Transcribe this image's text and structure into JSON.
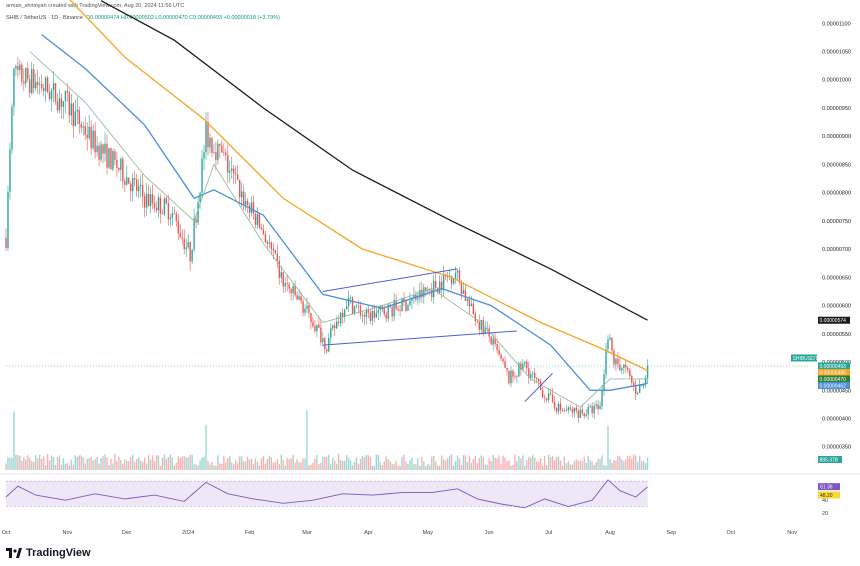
{
  "header": {
    "creator_line": "arman_shirinyan created with TradingView.com, Aug 20, 2024 11:56 UTC",
    "symbol_line": "SHIB / TetherUS · 1D · Binance",
    "ohlc_line": "O0.00000474 H0.00000502 L0.00000470 C0.00000493 +0.00000018 (+3.79%)"
  },
  "branding": {
    "logo_text": "TradingView",
    "logo_icon": "tradingview-logo-icon"
  },
  "colors": {
    "up": "#26a69a",
    "down": "#ef5350",
    "ma_black": "#1a1a1a",
    "ma_orange": "#f5a623",
    "ma_blue": "#4a90d9",
    "ma_green": "#8bb88f",
    "channel": "#4a5fd9",
    "rsi": "#7e57c2",
    "price_tag": "#26a69a"
  },
  "chart_data": [
    {
      "type": "candlestick",
      "title": "SHIB / TetherUS · 1D · Binance",
      "y_axis_ticks": [
        "0.00001100",
        "0.00001050",
        "0.00001000",
        "0.00000950",
        "0.00000900",
        "0.00000850",
        "0.00000800",
        "0.00000750",
        "0.00000700",
        "0.00000650",
        "0.00000600",
        "0.00000550",
        "0.00000500",
        "0.00000450",
        "0.00000400",
        "0.00000350"
      ],
      "ylim": [
        3.3e-06,
        1.12e-05
      ],
      "x_axis_labels": [
        "Oct",
        "Nov",
        "Dec",
        "2024",
        "Feb",
        "Mar",
        "Apr",
        "May",
        "Jun",
        "Jul",
        "Aug",
        "Sep",
        "Oct",
        "Nov"
      ],
      "x_label_days": [
        0,
        31,
        61,
        92,
        123,
        152,
        183,
        213,
        244,
        274,
        305,
        336,
        366,
        397
      ],
      "last_day": 324,
      "price_path": [
        {
          "day": 0,
          "price": 7.2e-06
        },
        {
          "day": 4,
          "price": 1.01e-05
        },
        {
          "day": 8,
          "price": 1.005e-05
        },
        {
          "day": 18,
          "price": 9.9e-06
        },
        {
          "day": 30,
          "price": 9.6e-06
        },
        {
          "day": 44,
          "price": 8.9e-06
        },
        {
          "day": 58,
          "price": 8.4e-06
        },
        {
          "day": 70,
          "price": 7.9e-06
        },
        {
          "day": 83,
          "price": 7.7e-06
        },
        {
          "day": 93,
          "price": 6.9e-06
        },
        {
          "day": 97,
          "price": 7.9e-06
        },
        {
          "day": 101,
          "price": 9.05e-06
        },
        {
          "day": 110,
          "price": 8.6e-06
        },
        {
          "day": 120,
          "price": 7.9e-06
        },
        {
          "day": 130,
          "price": 7.3e-06
        },
        {
          "day": 140,
          "price": 6.4e-06
        },
        {
          "day": 150,
          "price": 6e-06
        },
        {
          "day": 162,
          "price": 5.3e-06
        },
        {
          "day": 172,
          "price": 6.1e-06
        },
        {
          "day": 182,
          "price": 5.8e-06
        },
        {
          "day": 200,
          "price": 6e-06
        },
        {
          "day": 215,
          "price": 6.3e-06
        },
        {
          "day": 227,
          "price": 6.6e-06
        },
        {
          "day": 235,
          "price": 5.9e-06
        },
        {
          "day": 244,
          "price": 5.45e-06
        },
        {
          "day": 254,
          "price": 4.7e-06
        },
        {
          "day": 262,
          "price": 4.95e-06
        },
        {
          "day": 270,
          "price": 4.5e-06
        },
        {
          "day": 280,
          "price": 4.15e-06
        },
        {
          "day": 292,
          "price": 4.1e-06
        },
        {
          "day": 300,
          "price": 4.2e-06
        },
        {
          "day": 304,
          "price": 5.5e-06
        },
        {
          "day": 307,
          "price": 5e-06
        },
        {
          "day": 312,
          "price": 4.9e-06
        },
        {
          "day": 318,
          "price": 4.5e-06
        },
        {
          "day": 322,
          "price": 4.6e-06
        },
        {
          "day": 324,
          "price": 4.93e-06
        }
      ],
      "moving_averages": [
        {
          "name": "MA 200",
          "color_key": "ma_black",
          "points": [
            {
              "day": 48,
              "price": 1.14e-05
            },
            {
              "day": 85,
              "price": 1.07e-05
            },
            {
              "day": 130,
              "price": 9.5e-06
            },
            {
              "day": 175,
              "price": 8.4e-06
            },
            {
              "day": 225,
              "price": 7.5e-06
            },
            {
              "day": 275,
              "price": 6.65e-06
            },
            {
              "day": 324,
              "price": 5.74e-06
            }
          ]
        },
        {
          "name": "MA 100",
          "color_key": "ma_orange",
          "points": [
            {
              "day": 30,
              "price": 1.15e-05
            },
            {
              "day": 60,
              "price": 1.04e-05
            },
            {
              "day": 100,
              "price": 9.3e-06
            },
            {
              "day": 140,
              "price": 7.9e-06
            },
            {
              "day": 180,
              "price": 7e-06
            },
            {
              "day": 225,
              "price": 6.5e-06
            },
            {
              "day": 270,
              "price": 5.7e-06
            },
            {
              "day": 300,
              "price": 5.25e-06
            },
            {
              "day": 324,
              "price": 4.85e-06
            }
          ]
        },
        {
          "name": "MA 50",
          "color_key": "ma_blue",
          "points": [
            {
              "day": 18,
              "price": 1.08e-05
            },
            {
              "day": 40,
              "price": 1.02e-05
            },
            {
              "day": 70,
              "price": 9.2e-06
            },
            {
              "day": 95,
              "price": 7.9e-06
            },
            {
              "day": 105,
              "price": 8.05e-06
            },
            {
              "day": 130,
              "price": 7.6e-06
            },
            {
              "day": 160,
              "price": 6.2e-06
            },
            {
              "day": 190,
              "price": 5.95e-06
            },
            {
              "day": 220,
              "price": 6.3e-06
            },
            {
              "day": 245,
              "price": 6e-06
            },
            {
              "day": 275,
              "price": 5.3e-06
            },
            {
              "day": 295,
              "price": 4.5e-06
            },
            {
              "day": 305,
              "price": 4.5e-06
            },
            {
              "day": 324,
              "price": 4.62e-06
            }
          ]
        },
        {
          "name": "MA 20",
          "color_key": "ma_green",
          "points": [
            {
              "day": 12,
              "price": 1.05e-05
            },
            {
              "day": 40,
              "price": 9.6e-06
            },
            {
              "day": 70,
              "price": 8.3e-06
            },
            {
              "day": 95,
              "price": 7.5e-06
            },
            {
              "day": 105,
              "price": 8.5e-06
            },
            {
              "day": 130,
              "price": 7.1e-06
            },
            {
              "day": 160,
              "price": 5.7e-06
            },
            {
              "day": 190,
              "price": 6e-06
            },
            {
              "day": 215,
              "price": 6.3e-06
            },
            {
              "day": 240,
              "price": 5.7e-06
            },
            {
              "day": 265,
              "price": 4.7e-06
            },
            {
              "day": 290,
              "price": 4.2e-06
            },
            {
              "day": 305,
              "price": 4.7e-06
            },
            {
              "day": 324,
              "price": 4.7e-06
            }
          ]
        }
      ],
      "trend_lines": [
        {
          "from": {
            "day": 160,
            "price": 6.25e-06
          },
          "to": {
            "day": 228,
            "price": 6.65e-06
          }
        },
        {
          "from": {
            "day": 160,
            "price": 5.3e-06
          },
          "to": {
            "day": 258,
            "price": 5.55e-06
          }
        },
        {
          "from": {
            "day": 262,
            "price": 4.3e-06
          },
          "to": {
            "day": 276,
            "price": 4.8e-06
          }
        }
      ],
      "price_tags": [
        {
          "label": "0.00000574",
          "color": "#1a1a1a",
          "price": 5.74e-06
        },
        {
          "label": "SHIBUSDT",
          "color": "#26a69a",
          "price": 4.93e-06
        },
        {
          "label": "0.00000493",
          "color": "#26a69a",
          "price": 4.93e-06
        },
        {
          "label": "0.00000485",
          "color": "#f5a623",
          "price": 4.85e-06
        },
        {
          "label": "0.00000470",
          "color": "#2e7d32",
          "price": 4.7e-06
        },
        {
          "label": "0.00000462",
          "color": "#4a90d9",
          "price": 4.62e-06
        }
      ],
      "volume": {
        "label": "885.37B",
        "spikes_days": [
          4,
          101,
          152,
          304
        ]
      }
    },
    {
      "type": "line",
      "title": "RSI",
      "y_ticks": [
        60,
        40,
        20
      ],
      "ylim": [
        15,
        75
      ],
      "band": [
        30,
        70
      ],
      "current_label": "61.36",
      "secondary_label": "48.20",
      "points": [
        {
          "day": 0,
          "value": 45
        },
        {
          "day": 6,
          "value": 62
        },
        {
          "day": 15,
          "value": 48
        },
        {
          "day": 30,
          "value": 40
        },
        {
          "day": 45,
          "value": 50
        },
        {
          "day": 60,
          "value": 42
        },
        {
          "day": 75,
          "value": 48
        },
        {
          "day": 90,
          "value": 38
        },
        {
          "day": 101,
          "value": 68
        },
        {
          "day": 112,
          "value": 50
        },
        {
          "day": 125,
          "value": 42
        },
        {
          "day": 140,
          "value": 35
        },
        {
          "day": 155,
          "value": 40
        },
        {
          "day": 170,
          "value": 50
        },
        {
          "day": 185,
          "value": 48
        },
        {
          "day": 200,
          "value": 52
        },
        {
          "day": 215,
          "value": 52
        },
        {
          "day": 228,
          "value": 58
        },
        {
          "day": 238,
          "value": 42
        },
        {
          "day": 250,
          "value": 34
        },
        {
          "day": 262,
          "value": 28
        },
        {
          "day": 272,
          "value": 42
        },
        {
          "day": 284,
          "value": 30
        },
        {
          "day": 296,
          "value": 40
        },
        {
          "day": 304,
          "value": 72
        },
        {
          "day": 310,
          "value": 55
        },
        {
          "day": 318,
          "value": 45
        },
        {
          "day": 324,
          "value": 61
        }
      ]
    }
  ]
}
